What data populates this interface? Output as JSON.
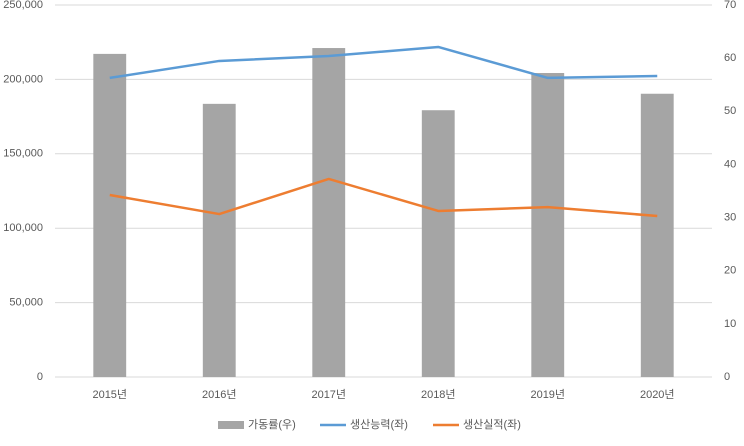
{
  "chart_data": {
    "type": "bar",
    "categories": [
      "2015년",
      "2016년",
      "2017년",
      "2018년",
      "2019년",
      "2020년"
    ],
    "series": [
      {
        "name": "가동률(우)",
        "type": "bar",
        "axis": "y2",
        "color": "#a5a5a5",
        "values": [
          60.8,
          51.4,
          61.9,
          50.2,
          57.2,
          53.3
        ]
      },
      {
        "name": "생산능력(좌)",
        "type": "line",
        "color": "#5b9bd5",
        "values": [
          201000,
          212400,
          215700,
          221800,
          201000,
          202300
        ]
      },
      {
        "name": "생산실적(좌)",
        "type": "line",
        "color": "#ed7d31",
        "values": [
          122300,
          109500,
          133100,
          111600,
          114200,
          108200
        ]
      }
    ],
    "ylim": [
      0,
      250000
    ],
    "yticks": [
      0,
      {
        "value": 50000,
        "label": "50,000"
      },
      {
        "value": 100000,
        "label": "100,000"
      },
      {
        "value": 150000,
        "label": "150,000"
      },
      {
        "value": 200000,
        "label": "200,000"
      },
      {
        "value": 250000,
        "label": "250,000"
      }
    ],
    "y2lim": [
      0,
      70
    ],
    "y2ticks": [
      0,
      10,
      20,
      30,
      40,
      50,
      60,
      70
    ],
    "grid": true,
    "legend": "bottom"
  }
}
